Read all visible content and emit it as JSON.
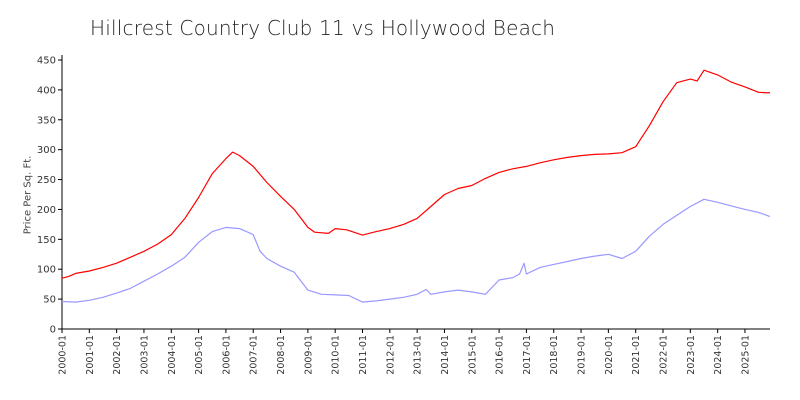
{
  "chart_data": {
    "type": "line",
    "title": "Hillcrest Country Club 11 vs Hollywood Beach",
    "xlabel": "",
    "ylabel": "Price Per Sq. Ft.",
    "ylim": [
      0,
      450
    ],
    "yticks": [
      0,
      50,
      100,
      150,
      200,
      250,
      300,
      350,
      400,
      450
    ],
    "xlim": [
      "2000-01",
      "2025-12"
    ],
    "xticks": [
      "2000-01",
      "2001-01",
      "2002-01",
      "2003-01",
      "2004-01",
      "2005-01",
      "2006-01",
      "2007-01",
      "2008-01",
      "2009-01",
      "2010-01",
      "2011-01",
      "2012-01",
      "2013-01",
      "2014-01",
      "2015-01",
      "2016-01",
      "2017-01",
      "2018-01",
      "2019-01",
      "2020-01",
      "2021-01",
      "2022-01",
      "2023-01",
      "2024-01",
      "2025-01"
    ],
    "grid": false,
    "legend": "none",
    "series": [
      {
        "color": "#ff0000",
        "points": [
          [
            "2000-01",
            85
          ],
          [
            "2000-04",
            88
          ],
          [
            "2000-07",
            93
          ],
          [
            "2001-01",
            97
          ],
          [
            "2001-07",
            103
          ],
          [
            "2002-01",
            110
          ],
          [
            "2002-07",
            120
          ],
          [
            "2003-01",
            130
          ],
          [
            "2003-07",
            142
          ],
          [
            "2004-01",
            158
          ],
          [
            "2004-07",
            185
          ],
          [
            "2005-01",
            220
          ],
          [
            "2005-07",
            260
          ],
          [
            "2006-01",
            285
          ],
          [
            "2006-04",
            296
          ],
          [
            "2006-07",
            290
          ],
          [
            "2007-01",
            272
          ],
          [
            "2007-07",
            245
          ],
          [
            "2008-01",
            222
          ],
          [
            "2008-07",
            200
          ],
          [
            "2009-01",
            170
          ],
          [
            "2009-04",
            162
          ],
          [
            "2009-10",
            160
          ],
          [
            "2010-01",
            168
          ],
          [
            "2010-06",
            166
          ],
          [
            "2011-01",
            157
          ],
          [
            "2011-07",
            163
          ],
          [
            "2012-01",
            168
          ],
          [
            "2012-07",
            175
          ],
          [
            "2013-01",
            185
          ],
          [
            "2013-07",
            205
          ],
          [
            "2014-01",
            225
          ],
          [
            "2014-07",
            235
          ],
          [
            "2015-01",
            240
          ],
          [
            "2015-07",
            252
          ],
          [
            "2016-01",
            262
          ],
          [
            "2016-07",
            268
          ],
          [
            "2017-01",
            272
          ],
          [
            "2017-07",
            278
          ],
          [
            "2018-01",
            283
          ],
          [
            "2018-07",
            287
          ],
          [
            "2019-01",
            290
          ],
          [
            "2019-07",
            292
          ],
          [
            "2020-01",
            293
          ],
          [
            "2020-07",
            295
          ],
          [
            "2021-01",
            305
          ],
          [
            "2021-07",
            340
          ],
          [
            "2022-01",
            380
          ],
          [
            "2022-07",
            412
          ],
          [
            "2023-01",
            418
          ],
          [
            "2023-04",
            415
          ],
          [
            "2023-07",
            433
          ],
          [
            "2024-01",
            425
          ],
          [
            "2024-07",
            413
          ],
          [
            "2025-01",
            405
          ],
          [
            "2025-07",
            396
          ],
          [
            "2025-12",
            395
          ]
        ]
      },
      {
        "color": "#9999ff",
        "points": [
          [
            "2000-01",
            46
          ],
          [
            "2000-07",
            45
          ],
          [
            "2001-01",
            48
          ],
          [
            "2001-07",
            53
          ],
          [
            "2002-01",
            60
          ],
          [
            "2002-07",
            68
          ],
          [
            "2003-01",
            80
          ],
          [
            "2003-07",
            92
          ],
          [
            "2004-01",
            105
          ],
          [
            "2004-07",
            120
          ],
          [
            "2005-01",
            145
          ],
          [
            "2005-07",
            163
          ],
          [
            "2006-01",
            170
          ],
          [
            "2006-07",
            168
          ],
          [
            "2007-01",
            158
          ],
          [
            "2007-04",
            130
          ],
          [
            "2007-07",
            118
          ],
          [
            "2008-01",
            105
          ],
          [
            "2008-07",
            95
          ],
          [
            "2009-01",
            65
          ],
          [
            "2009-07",
            58
          ],
          [
            "2010-01",
            57
          ],
          [
            "2010-07",
            56
          ],
          [
            "2011-01",
            45
          ],
          [
            "2011-07",
            47
          ],
          [
            "2012-01",
            50
          ],
          [
            "2012-07",
            53
          ],
          [
            "2013-01",
            58
          ],
          [
            "2013-05",
            66
          ],
          [
            "2013-07",
            58
          ],
          [
            "2014-01",
            62
          ],
          [
            "2014-07",
            65
          ],
          [
            "2015-01",
            62
          ],
          [
            "2015-07",
            58
          ],
          [
            "2016-01",
            82
          ],
          [
            "2016-07",
            86
          ],
          [
            "2016-10",
            92
          ],
          [
            "2016-12",
            110
          ],
          [
            "2017-01",
            92
          ],
          [
            "2017-07",
            103
          ],
          [
            "2018-01",
            108
          ],
          [
            "2018-07",
            113
          ],
          [
            "2019-01",
            118
          ],
          [
            "2019-07",
            122
          ],
          [
            "2020-01",
            125
          ],
          [
            "2020-07",
            118
          ],
          [
            "2021-01",
            130
          ],
          [
            "2021-07",
            155
          ],
          [
            "2022-01",
            175
          ],
          [
            "2022-07",
            190
          ],
          [
            "2023-01",
            205
          ],
          [
            "2023-07",
            217
          ],
          [
            "2024-01",
            212
          ],
          [
            "2024-07",
            206
          ],
          [
            "2025-01",
            200
          ],
          [
            "2025-07",
            195
          ],
          [
            "2025-12",
            188
          ]
        ]
      }
    ]
  }
}
